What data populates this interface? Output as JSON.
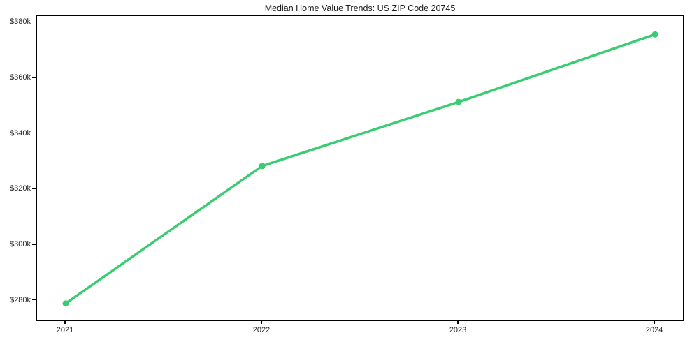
{
  "title": "Median Home Value Trends: US ZIP Code 20745",
  "chart_data": {
    "type": "line",
    "title": "Median Home Value Trends: US ZIP Code 20745",
    "xlabel": "",
    "ylabel": "",
    "x": [
      2021,
      2022,
      2023,
      2024
    ],
    "series": [
      {
        "name": "Median Home Value",
        "values": [
          279000,
          328400,
          351400,
          375700
        ]
      }
    ],
    "xticks": [
      2021,
      2022,
      2023,
      2024
    ],
    "xtick_labels": [
      "2021",
      "2022",
      "2023",
      "2024"
    ],
    "yticks": [
      280000,
      300000,
      320000,
      340000,
      360000,
      380000
    ],
    "ytick_labels": [
      "$280k",
      "$300k",
      "$320k",
      "$340k",
      "$360k",
      "$380k"
    ],
    "xlim": [
      2020.854,
      2024.142
    ],
    "ylim": [
      272900,
      382300
    ],
    "grid": false,
    "legend_position": "none",
    "line_color": "#38cd70",
    "marker": "circle",
    "marker_radius": 4.5,
    "line_width": 3.5
  },
  "colors": {
    "line": "#38cd70",
    "spine": "#000000",
    "background": "#ffffff",
    "text": "#262626"
  }
}
